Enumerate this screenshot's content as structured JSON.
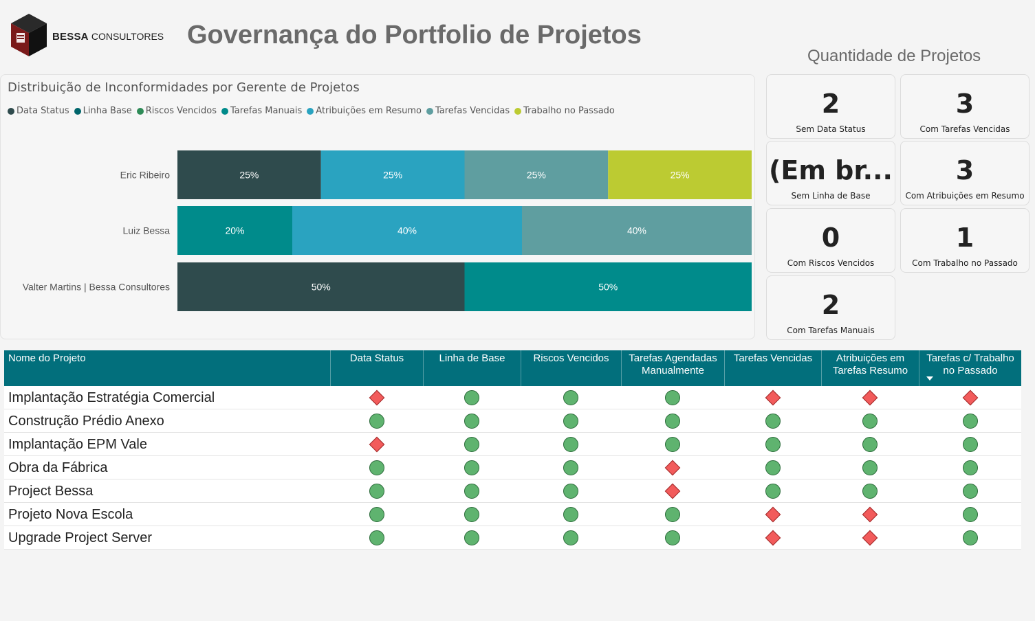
{
  "header": {
    "logo_brand": "BESSA",
    "logo_sub": "CONSULTORES",
    "title": "Governança do Portfolio de Projetos",
    "qty_title": "Quantidade de Projetos"
  },
  "chart_data": {
    "type": "bar",
    "orientation": "horizontal",
    "stacked": "100%",
    "title": "Distribuição de Inconformidades por Gerente de Projetos",
    "legend_position": "top-left",
    "legend": [
      {
        "name": "Data Status",
        "color": "#2f4b4d"
      },
      {
        "name": "Linha Base",
        "color": "#00656b"
      },
      {
        "name": "Riscos Vencidos",
        "color": "#2e8b57"
      },
      {
        "name": "Tarefas Manuais",
        "color": "#008b8b"
      },
      {
        "name": "Atribuições em Resumo",
        "color": "#2aa3c0"
      },
      {
        "name": "Tarefas Vencidas",
        "color": "#5f9ea0"
      },
      {
        "name": "Trabalho no Passado",
        "color": "#bccb32"
      }
    ],
    "categories": [
      "Eric Ribeiro",
      "Luiz Bessa",
      "Valter Martins | Bessa Consultores"
    ],
    "series": [
      {
        "name": "Data Status",
        "values": [
          25,
          0,
          50
        ]
      },
      {
        "name": "Linha Base",
        "values": [
          0,
          0,
          0
        ]
      },
      {
        "name": "Riscos Vencidos",
        "values": [
          0,
          0,
          0
        ]
      },
      {
        "name": "Tarefas Manuais",
        "values": [
          0,
          20,
          50
        ]
      },
      {
        "name": "Atribuições em Resumo",
        "values": [
          25,
          40,
          0
        ]
      },
      {
        "name": "Tarefas Vencidas",
        "values": [
          25,
          40,
          0
        ]
      },
      {
        "name": "Trabalho no Passado",
        "values": [
          25,
          0,
          0
        ]
      }
    ],
    "xlim": [
      0,
      100
    ],
    "grid": false
  },
  "kpis": [
    {
      "value": "2",
      "label": "Sem Data Status"
    },
    {
      "value": "3",
      "label": "Com Tarefas Vencidas"
    },
    {
      "value": "(Em br...",
      "label": "Sem Linha de Base"
    },
    {
      "value": "3",
      "label": "Com Atribuições em Resumo"
    },
    {
      "value": "0",
      "label": "Com Riscos Vencidos"
    },
    {
      "value": "1",
      "label": "Com Trabalho no Passado"
    },
    {
      "value": "2",
      "label": "Com Tarefas Manuais"
    }
  ],
  "table": {
    "headers": [
      "Nome do Projeto",
      "Data Status",
      "Linha de Base",
      "Riscos Vencidos",
      "Tarefas Agendadas Manualmente",
      "Tarefas Vencidas",
      "Atribuições em Tarefas Resumo",
      "Tarefas c/ Trabalho no Passado"
    ],
    "rows": [
      {
        "name": "Implantação Estratégia Comercial",
        "status": [
          "bad",
          "ok",
          "ok",
          "ok",
          "bad",
          "bad",
          "bad"
        ]
      },
      {
        "name": "Construção Prédio Anexo",
        "status": [
          "ok",
          "ok",
          "ok",
          "ok",
          "ok",
          "ok",
          "ok"
        ]
      },
      {
        "name": "Implantação EPM Vale",
        "status": [
          "bad",
          "ok",
          "ok",
          "ok",
          "ok",
          "ok",
          "ok"
        ]
      },
      {
        "name": "Obra da Fábrica",
        "status": [
          "ok",
          "ok",
          "ok",
          "bad",
          "ok",
          "ok",
          "ok"
        ]
      },
      {
        "name": "Project Bessa",
        "status": [
          "ok",
          "ok",
          "ok",
          "bad",
          "ok",
          "ok",
          "ok"
        ]
      },
      {
        "name": "Projeto Nova Escola",
        "status": [
          "ok",
          "ok",
          "ok",
          "ok",
          "bad",
          "bad",
          "ok"
        ]
      },
      {
        "name": "Upgrade Project Server",
        "status": [
          "ok",
          "ok",
          "ok",
          "ok",
          "bad",
          "bad",
          "ok"
        ]
      }
    ]
  }
}
